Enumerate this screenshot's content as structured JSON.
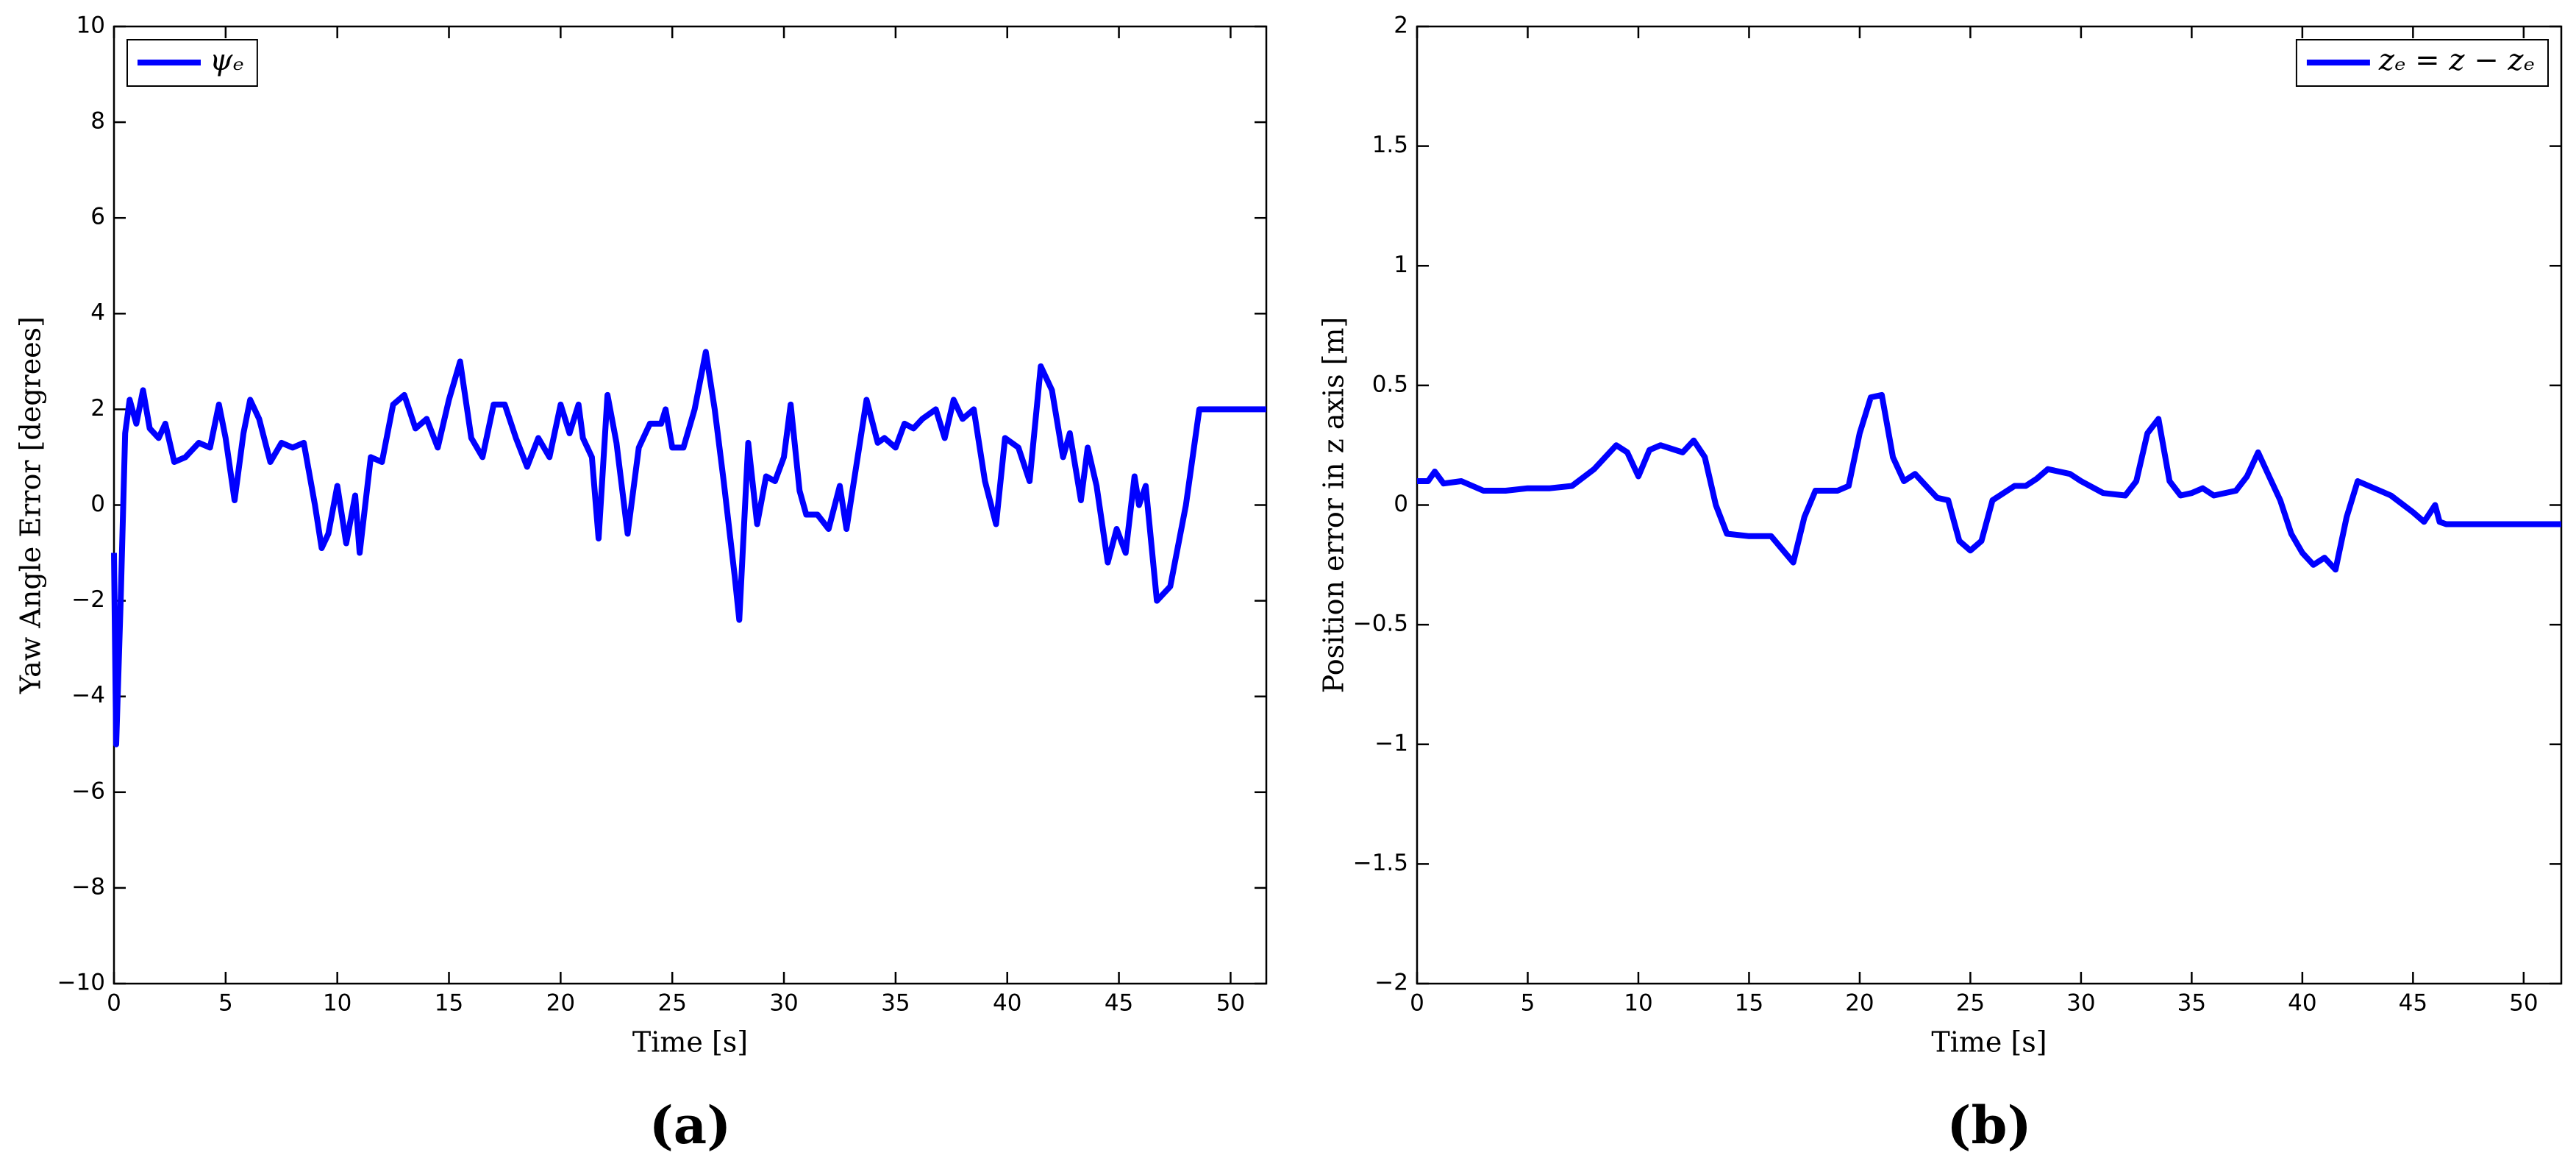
{
  "chart_data": [
    {
      "type": "line",
      "label": "(a)",
      "xlabel": "Time [s]",
      "ylabel": "Yaw Angle Error [degrees]",
      "xlim": [
        0,
        51.6
      ],
      "xticks": [
        0,
        5,
        10,
        15,
        20,
        25,
        30,
        35,
        40,
        45,
        50
      ],
      "ylim": [
        -10,
        10
      ],
      "yticks": [
        {
          "value": -10,
          "label": "−10"
        },
        {
          "value": -8,
          "label": "−8"
        },
        {
          "value": -6,
          "label": "−6"
        },
        {
          "value": -4,
          "label": "−4"
        },
        {
          "value": -2,
          "label": "−2"
        },
        0,
        2,
        4,
        6,
        8,
        10
      ],
      "legend": "upper left",
      "x": [
        0,
        0.1,
        0.3,
        0.5,
        0.7,
        1,
        1.3,
        1.6,
        2,
        2.3,
        2.7,
        3.2,
        3.8,
        4.3,
        4.7,
        5,
        5.4,
        5.8,
        6.1,
        6.5,
        7,
        7.5,
        8,
        8.5,
        9,
        9.3,
        9.6,
        10,
        10.4,
        10.8,
        11,
        11.5,
        12,
        12.5,
        13,
        13.5,
        14,
        14.5,
        15,
        15.5,
        16,
        16.5,
        17,
        17.5,
        18,
        18.5,
        19,
        19.5,
        20,
        20.4,
        20.8,
        21,
        21.4,
        21.7,
        22.1,
        22.5,
        23,
        23.5,
        24,
        24.5,
        24.7,
        25,
        25.5,
        26,
        26.5,
        26.9,
        27.3,
        27.8,
        28,
        28.4,
        28.8,
        29.2,
        29.6,
        30,
        30.3,
        30.7,
        31,
        31.5,
        32,
        32.5,
        32.8,
        33.3,
        33.7,
        34.2,
        34.5,
        35,
        35.4,
        35.8,
        36.2,
        36.8,
        37.2,
        37.6,
        38,
        38.5,
        39,
        39.5,
        39.9,
        40.5,
        41,
        41.5,
        42,
        42.5,
        42.8,
        43.3,
        43.6,
        44,
        44.5,
        44.9,
        45.3,
        45.7,
        45.9,
        46.2,
        46.7,
        47.3,
        48,
        48.6,
        51.6
      ],
      "series": [
        {
          "name": "ψₑ",
          "color": "#0000ff",
          "values": [
            -1,
            -5,
            -2,
            1.5,
            2.2,
            1.7,
            2.4,
            1.6,
            1.4,
            1.7,
            0.9,
            1.0,
            1.3,
            1.2,
            2.1,
            1.4,
            0.1,
            1.5,
            2.2,
            1.8,
            0.9,
            1.3,
            1.2,
            1.3,
            0,
            -0.9,
            -0.6,
            0.4,
            -0.8,
            0.2,
            -1.0,
            1.0,
            0.9,
            2.1,
            2.3,
            1.6,
            1.8,
            1.2,
            2.2,
            3.0,
            1.4,
            1.0,
            2.1,
            2.1,
            1.4,
            0.8,
            1.4,
            1.0,
            2.1,
            1.5,
            2.1,
            1.4,
            1.0,
            -0.7,
            2.3,
            1.3,
            -0.6,
            1.2,
            1.7,
            1.7,
            2.0,
            1.2,
            1.2,
            2.0,
            3.2,
            2.0,
            0.5,
            -1.5,
            -2.4,
            1.3,
            -0.4,
            0.6,
            0.5,
            1.0,
            2.1,
            0.3,
            -0.2,
            -0.2,
            -0.5,
            0.4,
            -0.5,
            1.0,
            2.2,
            1.3,
            1.4,
            1.2,
            1.7,
            1.6,
            1.8,
            2.0,
            1.4,
            2.2,
            1.8,
            2.0,
            0.5,
            -0.4,
            1.4,
            1.2,
            0.5,
            2.9,
            2.4,
            1.0,
            1.5,
            0.1,
            1.2,
            0.4,
            -1.2,
            -0.5,
            -1.0,
            0.6,
            0,
            0.4,
            -2.0,
            -1.7,
            0,
            2.0,
            2.0
          ]
        }
      ]
    },
    {
      "type": "line",
      "label": "(b)",
      "xlabel": "Time [s]",
      "ylabel": "Position error in z axis [m]",
      "xlim": [
        0,
        51.7
      ],
      "xticks": [
        0,
        5,
        10,
        15,
        20,
        25,
        30,
        35,
        40,
        45,
        50
      ],
      "ylim": [
        -2,
        2
      ],
      "yticks": [
        {
          "value": -2,
          "label": "−2"
        },
        {
          "value": -1.5,
          "label": "−1.5"
        },
        {
          "value": -1,
          "label": "−1"
        },
        {
          "value": -0.5,
          "label": "−0.5"
        },
        0,
        0.5,
        1,
        1.5,
        2
      ],
      "legend": "upper right",
      "x": [
        0,
        0.5,
        0.8,
        1.2,
        2,
        3,
        4,
        5,
        6,
        7,
        8,
        9,
        9.5,
        10,
        10.5,
        11,
        12,
        12.5,
        13,
        13.5,
        14,
        15,
        16,
        17,
        17.5,
        18,
        19,
        19.5,
        20,
        20.5,
        21,
        21.5,
        22,
        22.5,
        23,
        23.5,
        24,
        24.5,
        25,
        25.5,
        26,
        27,
        27.5,
        28,
        28.5,
        29.5,
        30,
        31,
        32,
        32.5,
        33,
        33.5,
        34,
        34.5,
        35,
        35.5,
        36,
        37,
        37.5,
        38,
        38.5,
        39,
        39.5,
        40,
        40.5,
        41,
        41.5,
        42,
        42.5,
        43,
        44,
        45,
        45.5,
        46,
        46.2,
        46.5,
        51.7
      ],
      "series": [
        {
          "name": "zₑ = z − zₑ",
          "color": "#0000ff",
          "values": [
            0.1,
            0.1,
            0.14,
            0.09,
            0.1,
            0.06,
            0.06,
            0.07,
            0.07,
            0.08,
            0.15,
            0.25,
            0.22,
            0.12,
            0.23,
            0.25,
            0.22,
            0.27,
            0.2,
            0.0,
            -0.12,
            -0.13,
            -0.13,
            -0.24,
            -0.05,
            0.06,
            0.06,
            0.08,
            0.3,
            0.45,
            0.46,
            0.2,
            0.1,
            0.13,
            0.08,
            0.03,
            0.02,
            -0.15,
            -0.19,
            -0.15,
            0.02,
            0.08,
            0.08,
            0.11,
            0.15,
            0.13,
            0.1,
            0.05,
            0.04,
            0.1,
            0.3,
            0.36,
            0.1,
            0.04,
            0.05,
            0.07,
            0.04,
            0.06,
            0.12,
            0.22,
            0.12,
            0.02,
            -0.12,
            -0.2,
            -0.25,
            -0.22,
            -0.27,
            -0.05,
            0.1,
            0.08,
            0.04,
            -0.03,
            -0.07,
            0.0,
            -0.07,
            -0.08,
            -0.08
          ]
        }
      ]
    }
  ]
}
